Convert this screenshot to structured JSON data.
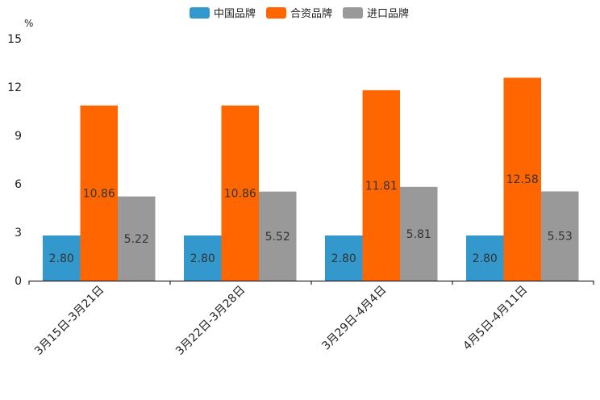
{
  "chart_data": {
    "type": "bar",
    "unit": "%",
    "categories": [
      "3月15日-3月21日",
      "3月22日-3月28日",
      "3月29日-4月4日",
      "4月5日-4月11日"
    ],
    "series": [
      {
        "name": "中国品牌",
        "color": "#3399cc",
        "values": [
          2.8,
          2.8,
          2.8,
          2.8
        ],
        "labels": [
          "2.80",
          "2.80",
          "2.80",
          "2.80"
        ]
      },
      {
        "name": "合资品牌",
        "color": "#ff6600",
        "values": [
          10.86,
          10.86,
          11.81,
          12.58
        ],
        "labels": [
          "10.86",
          "10.86",
          "11.81",
          "12.58"
        ]
      },
      {
        "name": "进口品牌",
        "color": "#999999",
        "values": [
          5.22,
          5.52,
          5.81,
          5.53
        ],
        "labels": [
          "5.22",
          "5.52",
          "5.81",
          "5.53"
        ]
      }
    ],
    "yticks": [
      0,
      3,
      6,
      9,
      12,
      15
    ],
    "ylim": [
      0,
      15
    ],
    "legend_position": "top-center",
    "grid": false
  }
}
